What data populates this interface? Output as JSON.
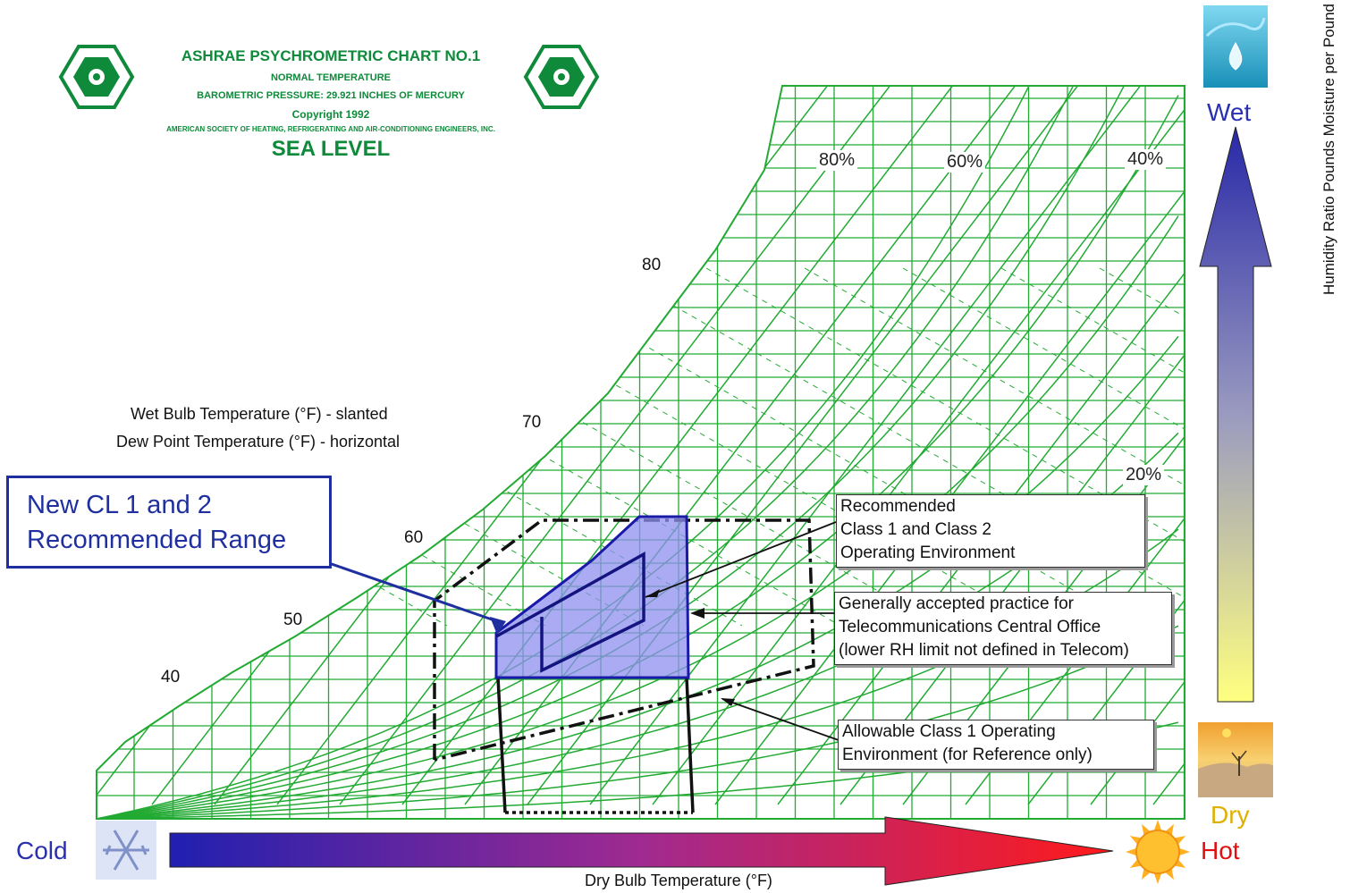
{
  "header": {
    "title": "ASHRAE PSYCHROMETRIC CHART NO.1",
    "line1": "NORMAL TEMPERATURE",
    "line2": "BAROMETRIC PRESSURE: 29.921 INCHES OF MERCURY",
    "line3": "Copyright 1992",
    "line4": "AMERICAN SOCIETY OF HEATING, REFRIGERATING AND AIR-CONDITIONING ENGINEERS, INC.",
    "line5": "SEA LEVEL",
    "logo_letters": "ASHRAE"
  },
  "legend": {
    "wet_bulb": "Wet Bulb Temperature (°F) - slanted",
    "dew_point": "Dew Point Temperature (°F) - horizontal"
  },
  "callout_new": {
    "line1": "New CL 1 and 2",
    "line2": "Recommended Range"
  },
  "rh_labels": {
    "rh80": "80%",
    "rh60": "60%",
    "rh40": "40%",
    "rh20": "20%"
  },
  "temp_labels": {
    "t80": "80",
    "t70": "70",
    "t60": "60",
    "t50": "50",
    "t40": "40"
  },
  "box_recommended": {
    "line1": "Recommended",
    "line2": "Class 1 and Class 2",
    "line3": "Operating Environment"
  },
  "box_telecom": {
    "line1": "Generally accepted practice for",
    "line2": "Telecommunications Central Office",
    "line3": "(lower RH limit not defined in Telecom)"
  },
  "box_allowable": {
    "line1": "Allowable Class 1 Operating",
    "line2": "Environment (for Reference only)"
  },
  "right_axis": {
    "label": "Humidity Ratio   Pounds Moisture per Pound of Dry Air"
  },
  "bottom_axis": {
    "label": "Dry Bulb Temperature (°F)"
  },
  "indicators": {
    "wet": "Wet",
    "dry": "Dry",
    "cold": "Cold",
    "hot": "Hot"
  },
  "colors": {
    "grid": "#22aa33",
    "range_fill": "#8f8ff0",
    "range_stroke": "#1a1aa8",
    "callout": "#1f2fa0",
    "hot": "#e01010",
    "dry": "#e0b000"
  }
}
